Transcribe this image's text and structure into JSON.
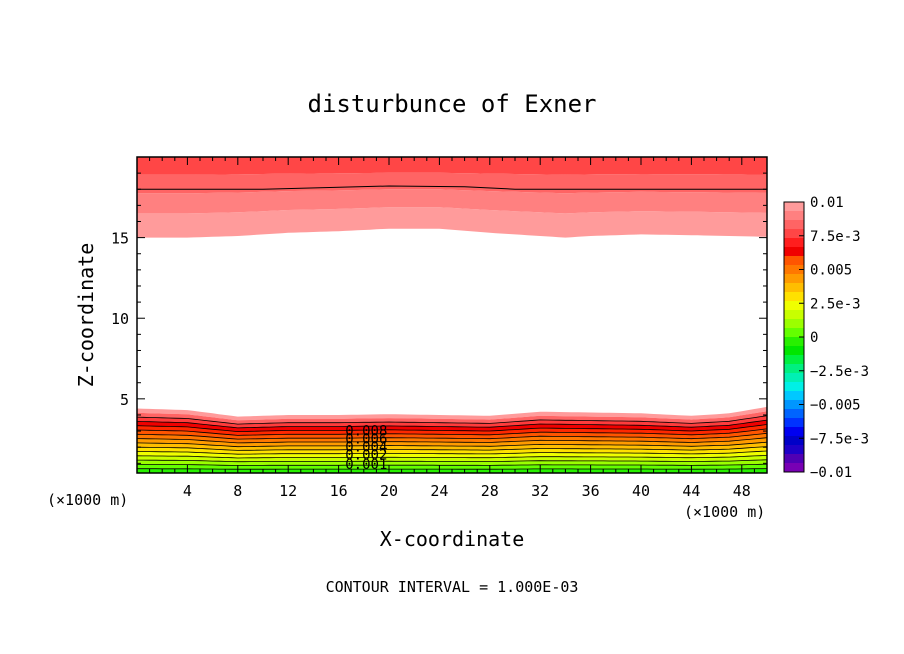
{
  "chart_data": {
    "type": "filled-contour",
    "title": "disturbunce of Exner",
    "xlabel": "X-coordinate",
    "ylabel": "Z-coordinate",
    "x_unit_label": "(×1000 m)",
    "xlim": [
      0,
      50
    ],
    "ylim": [
      0.4,
      20
    ],
    "x_ticks": [
      4,
      8,
      12,
      16,
      20,
      24,
      28,
      32,
      36,
      40,
      44,
      48
    ],
    "y_ticks": [
      5,
      10,
      15
    ],
    "footer": "CONTOUR INTERVAL = 1.000E-03",
    "colorbar": {
      "tick_labels": [
        "0.01",
        "7.5e-3",
        "0.005",
        "2.5e-3",
        "0",
        "−2.5e-3",
        "−0.005",
        "−7.5e-3",
        "−0.01"
      ],
      "colors": [
        "#ff9b9b",
        "#ff8080",
        "#ff6464",
        "#ff4646",
        "#ff1e1e",
        "#f00000",
        "#ff5500",
        "#ff7800",
        "#ff9b00",
        "#ffbe00",
        "#ffe100",
        "#f0ff00",
        "#c8ff00",
        "#9bff00",
        "#64ff00",
        "#28f000",
        "#00e600",
        "#00f040",
        "#00f080",
        "#00f0b4",
        "#00f0e6",
        "#00c8ff",
        "#0096ff",
        "#0064ff",
        "#0032ff",
        "#0000f0",
        "#0000c8",
        "#1e00c8",
        "#5000b4",
        "#7800b4"
      ]
    },
    "contour_labels": [
      "0.008",
      "0.006",
      "0.004",
      "0.002",
      "0.001"
    ],
    "fields": {
      "top_layer": {
        "description": "positive region near top boundary",
        "lower_boundary_z": [
          [
            0,
            15.0
          ],
          [
            4,
            15.0
          ],
          [
            8,
            15.1
          ],
          [
            12,
            15.3
          ],
          [
            16,
            15.4
          ],
          [
            20,
            15.55
          ],
          [
            24,
            15.55
          ],
          [
            28,
            15.3
          ],
          [
            32,
            15.1
          ],
          [
            34,
            15.0
          ],
          [
            36,
            15.1
          ],
          [
            40,
            15.2
          ],
          [
            44,
            15.15
          ],
          [
            50,
            15.05
          ]
        ],
        "contour_z": [
          [
            0,
            18.0
          ],
          [
            10,
            18.0
          ],
          [
            20,
            18.2
          ],
          [
            26,
            18.15
          ],
          [
            30,
            18.0
          ],
          [
            40,
            18.0
          ],
          [
            50,
            18.0
          ]
        ]
      },
      "bottom_layer": {
        "description": "positive region near ground",
        "upper_boundary_z": [
          [
            0,
            4.4
          ],
          [
            4,
            4.3
          ],
          [
            8,
            3.9
          ],
          [
            12,
            4.0
          ],
          [
            16,
            4.0
          ],
          [
            20,
            4.05
          ],
          [
            24,
            4.0
          ],
          [
            28,
            3.95
          ],
          [
            32,
            4.2
          ],
          [
            36,
            4.15
          ],
          [
            40,
            4.1
          ],
          [
            44,
            3.95
          ],
          [
            47,
            4.1
          ],
          [
            50,
            4.5
          ]
        ],
        "contour_levels_z_at_x0": [
          4.0,
          3.7,
          3.45,
          3.2,
          2.9,
          2.6,
          2.3,
          2.0,
          1.7,
          1.4,
          1.1,
          0.8,
          0.5
        ]
      }
    }
  }
}
